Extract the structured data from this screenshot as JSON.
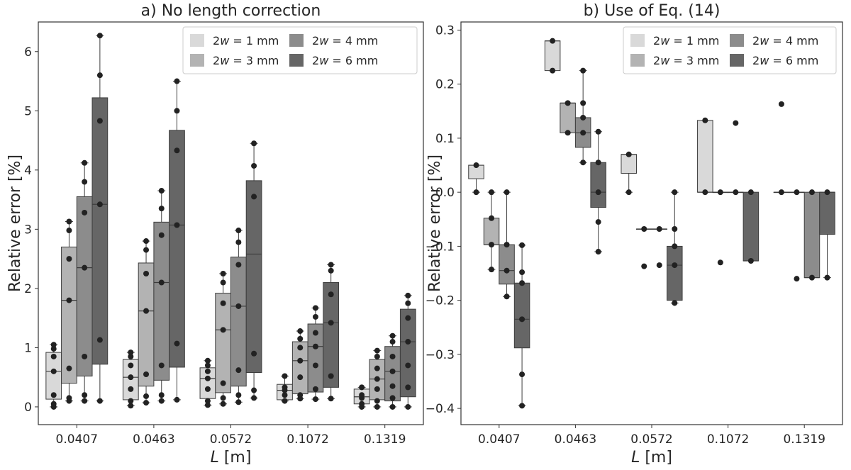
{
  "chart_data": [
    {
      "type": "box",
      "title": "a) No length correction",
      "xlabel_var": "L",
      "xlabel_unit": " [m]",
      "ylabel": "Relative error [%]",
      "ylim": [
        -0.3,
        6.5
      ],
      "yticks": [
        0,
        1,
        2,
        3,
        4,
        5,
        6
      ],
      "ytick_labels": [
        "0",
        "1",
        "2",
        "3",
        "4",
        "5",
        "6"
      ],
      "categories": [
        "0.0407",
        "0.0463",
        "0.0572",
        "0.1072",
        "0.1319"
      ],
      "legend": {
        "position": "top-right",
        "entries": [
          {
            "prefix": "2",
            "var": "w",
            "suffix": " = 1 mm"
          },
          {
            "prefix": "2",
            "var": "w",
            "suffix": " = 4 mm"
          },
          {
            "prefix": "2",
            "var": "w",
            "suffix": " = 3 mm"
          },
          {
            "prefix": "2",
            "var": "w",
            "suffix": " = 6 mm"
          }
        ]
      },
      "series": [
        {
          "name": "2w = 1 mm",
          "color": "#d9d9d9",
          "boxes": [
            {
              "q1": 0.13,
              "median": 0.6,
              "q3": 0.92,
              "whisker_low": 0.0,
              "whisker_high": 1.05,
              "points": [
                0.0,
                0.05,
                0.2,
                0.6,
                0.85,
                0.98,
                1.05
              ]
            },
            {
              "q1": 0.12,
              "median": 0.5,
              "q3": 0.8,
              "whisker_low": 0.02,
              "whisker_high": 0.92,
              "points": [
                0.02,
                0.1,
                0.3,
                0.5,
                0.7,
                0.85,
                0.92
              ]
            },
            {
              "q1": 0.14,
              "median": 0.48,
              "q3": 0.66,
              "whisker_low": 0.03,
              "whisker_high": 0.78,
              "points": [
                0.03,
                0.1,
                0.3,
                0.48,
                0.6,
                0.7,
                0.78
              ]
            },
            {
              "q1": 0.12,
              "median": 0.28,
              "q3": 0.38,
              "whisker_low": 0.1,
              "whisker_high": 0.52,
              "points": [
                0.1,
                0.2,
                0.28,
                0.33,
                0.52
              ]
            },
            {
              "q1": 0.05,
              "median": 0.17,
              "q3": 0.3,
              "whisker_low": 0.0,
              "whisker_high": 0.33,
              "points": [
                0.0,
                0.05,
                0.15,
                0.2,
                0.33
              ]
            }
          ]
        },
        {
          "name": "2w = 3 mm",
          "color": "#b3b3b3",
          "boxes": [
            {
              "q1": 0.4,
              "median": 1.8,
              "q3": 2.7,
              "whisker_low": 0.1,
              "whisker_high": 3.13,
              "points": [
                0.1,
                0.15,
                0.65,
                1.8,
                2.5,
                2.98,
                3.13
              ]
            },
            {
              "q1": 0.35,
              "median": 1.62,
              "q3": 2.43,
              "whisker_low": 0.07,
              "whisker_high": 2.8,
              "points": [
                0.07,
                0.18,
                0.55,
                1.62,
                2.25,
                2.65,
                2.8
              ]
            },
            {
              "q1": 0.24,
              "median": 1.3,
              "q3": 1.92,
              "whisker_low": 0.05,
              "whisker_high": 2.25,
              "points": [
                0.05,
                0.15,
                0.4,
                1.3,
                1.75,
                2.1,
                2.25
              ]
            },
            {
              "q1": 0.22,
              "median": 0.78,
              "q3": 1.1,
              "whisker_low": 0.14,
              "whisker_high": 1.28,
              "points": [
                0.14,
                0.2,
                0.5,
                0.78,
                1.0,
                1.15,
                1.28
              ]
            },
            {
              "q1": 0.12,
              "median": 0.47,
              "q3": 0.8,
              "whisker_low": 0.0,
              "whisker_high": 0.95,
              "points": [
                0.0,
                0.1,
                0.3,
                0.47,
                0.65,
                0.85,
                0.95
              ]
            }
          ]
        },
        {
          "name": "2w = 4 mm",
          "color": "#8c8c8c",
          "boxes": [
            {
              "q1": 0.52,
              "median": 2.35,
              "q3": 3.55,
              "whisker_low": 0.1,
              "whisker_high": 4.12,
              "points": [
                0.1,
                0.2,
                0.85,
                2.35,
                3.28,
                3.8,
                4.12
              ]
            },
            {
              "q1": 0.45,
              "median": 2.1,
              "q3": 3.12,
              "whisker_low": 0.1,
              "whisker_high": 3.65,
              "points": [
                0.1,
                0.2,
                0.7,
                2.1,
                2.9,
                3.35,
                3.65
              ]
            },
            {
              "q1": 0.35,
              "median": 1.7,
              "q3": 2.53,
              "whisker_low": 0.08,
              "whisker_high": 2.98,
              "points": [
                0.08,
                0.2,
                0.62,
                1.7,
                2.4,
                2.78,
                2.98
              ]
            },
            {
              "q1": 0.25,
              "median": 1.02,
              "q3": 1.4,
              "whisker_low": 0.13,
              "whisker_high": 1.67,
              "points": [
                0.13,
                0.3,
                0.7,
                1.02,
                1.25,
                1.52,
                1.67
              ]
            },
            {
              "q1": 0.1,
              "median": 0.6,
              "q3": 1.02,
              "whisker_low": 0.0,
              "whisker_high": 1.2,
              "points": [
                0.0,
                0.15,
                0.35,
                0.6,
                0.85,
                1.1,
                1.2
              ]
            }
          ]
        },
        {
          "name": "2w = 6 mm",
          "color": "#666666",
          "boxes": [
            {
              "q1": 0.72,
              "median": 3.42,
              "q3": 5.22,
              "whisker_low": 0.1,
              "whisker_high": 6.27,
              "points": [
                0.1,
                1.13,
                3.42,
                4.83,
                5.6,
                6.27
              ]
            },
            {
              "q1": 0.67,
              "median": 3.07,
              "q3": 4.67,
              "whisker_low": 0.12,
              "whisker_high": 5.5,
              "points": [
                0.12,
                1.07,
                3.07,
                4.33,
                5.0,
                5.5
              ]
            },
            {
              "q1": 0.58,
              "median": 2.58,
              "q3": 3.82,
              "whisker_low": 0.15,
              "whisker_high": 4.45,
              "points": [
                0.15,
                0.28,
                0.9,
                3.55,
                4.07,
                4.45
              ]
            },
            {
              "q1": 0.33,
              "median": 1.42,
              "q3": 2.1,
              "whisker_low": 0.14,
              "whisker_high": 2.4,
              "points": [
                0.14,
                0.52,
                1.42,
                1.9,
                2.3,
                2.4
              ]
            },
            {
              "q1": 0.17,
              "median": 1.1,
              "q3": 1.65,
              "whisker_low": 0.0,
              "whisker_high": 1.88,
              "points": [
                0.0,
                0.33,
                0.7,
                1.1,
                1.5,
                1.75,
                1.88
              ]
            }
          ]
        }
      ]
    },
    {
      "type": "box",
      "title": "b) Use of Eq. (14)",
      "xlabel_var": "L",
      "xlabel_unit": " [m]",
      "ylabel": "Relative error [%]",
      "ylim": [
        -0.43,
        0.315
      ],
      "yticks": [
        -0.4,
        -0.3,
        -0.2,
        -0.1,
        0.0,
        0.1,
        0.2,
        0.3
      ],
      "ytick_labels": [
        "−0.4",
        "−0.3",
        "−0.2",
        "−0.1",
        "0.0",
        "0.1",
        "0.2",
        "0.3"
      ],
      "categories": [
        "0.0407",
        "0.0463",
        "0.0572",
        "0.1072",
        "0.1319"
      ],
      "legend": {
        "position": "top-right",
        "entries": [
          {
            "prefix": "2",
            "var": "w",
            "suffix": " = 1 mm"
          },
          {
            "prefix": "2",
            "var": "w",
            "suffix": " = 4 mm"
          },
          {
            "prefix": "2",
            "var": "w",
            "suffix": " = 3 mm"
          },
          {
            "prefix": "2",
            "var": "w",
            "suffix": " = 6 mm"
          }
        ]
      },
      "series": [
        {
          "name": "2w = 1 mm",
          "color": "#d9d9d9",
          "boxes": [
            {
              "q1": 0.025,
              "median": 0.05,
              "q3": 0.05,
              "whisker_low": 0.0,
              "whisker_high": 0.05,
              "points": [
                0.0,
                0.05
              ]
            },
            {
              "q1": 0.225,
              "median": 0.28,
              "q3": 0.28,
              "whisker_low": 0.225,
              "whisker_high": 0.28,
              "points": [
                0.225,
                0.28
              ]
            },
            {
              "q1": 0.035,
              "median": 0.07,
              "q3": 0.07,
              "whisker_low": 0.0,
              "whisker_high": 0.07,
              "points": [
                0.0,
                0.07
              ]
            },
            {
              "q1": 0.0,
              "median": 0.0,
              "q3": 0.133,
              "whisker_low": 0.0,
              "whisker_high": 0.133,
              "points": [
                0.0,
                0.133
              ]
            },
            {
              "q1": 0.0,
              "median": 0.0,
              "q3": 0.0,
              "whisker_low": 0.0,
              "whisker_high": 0.0,
              "points": [
                0.0,
                0.163
              ]
            }
          ]
        },
        {
          "name": "2w = 3 mm",
          "color": "#b3b3b3",
          "boxes": [
            {
              "q1": -0.097,
              "median": -0.097,
              "q3": -0.048,
              "whisker_low": -0.143,
              "whisker_high": 0.0,
              "points": [
                -0.143,
                -0.097,
                -0.048,
                0.0
              ]
            },
            {
              "q1": 0.11,
              "median": 0.165,
              "q3": 0.165,
              "whisker_low": 0.11,
              "whisker_high": 0.165,
              "points": [
                0.11,
                0.165
              ]
            },
            {
              "q1": -0.068,
              "median": -0.068,
              "q3": -0.068,
              "whisker_low": -0.068,
              "whisker_high": -0.068,
              "points": [
                -0.137,
                -0.068
              ]
            },
            {
              "q1": 0.0,
              "median": 0.0,
              "q3": 0.0,
              "whisker_low": 0.0,
              "whisker_high": 0.0,
              "points": [
                -0.13,
                0.0
              ]
            },
            {
              "q1": 0.0,
              "median": 0.0,
              "q3": 0.0,
              "whisker_low": 0.0,
              "whisker_high": 0.0,
              "points": [
                -0.16,
                0.0
              ]
            }
          ]
        },
        {
          "name": "2w = 4 mm",
          "color": "#8c8c8c",
          "boxes": [
            {
              "q1": -0.17,
              "median": -0.145,
              "q3": -0.097,
              "whisker_low": -0.193,
              "whisker_high": 0.0,
              "points": [
                -0.193,
                -0.145,
                -0.097,
                0.0
              ]
            },
            {
              "q1": 0.083,
              "median": 0.11,
              "q3": 0.138,
              "whisker_low": 0.055,
              "whisker_high": 0.225,
              "points": [
                0.055,
                0.11,
                0.138,
                0.165,
                0.225
              ]
            },
            {
              "q1": -0.068,
              "median": -0.068,
              "q3": -0.068,
              "whisker_low": -0.068,
              "whisker_high": -0.068,
              "points": [
                -0.135,
                -0.068
              ]
            },
            {
              "q1": 0.0,
              "median": 0.0,
              "q3": 0.0,
              "whisker_low": 0.0,
              "whisker_high": 0.0,
              "points": [
                0.0,
                0.128
              ]
            },
            {
              "q1": -0.158,
              "median": -0.158,
              "q3": 0.0,
              "whisker_low": -0.158,
              "whisker_high": 0.0,
              "points": [
                -0.158,
                0.0
              ]
            }
          ]
        },
        {
          "name": "2w = 6 mm",
          "color": "#666666",
          "boxes": [
            {
              "q1": -0.288,
              "median": -0.235,
              "q3": -0.168,
              "whisker_low": -0.395,
              "whisker_high": -0.098,
              "points": [
                -0.395,
                -0.337,
                -0.235,
                -0.168,
                -0.148,
                -0.098
              ]
            },
            {
              "q1": -0.028,
              "median": 0.0,
              "q3": 0.055,
              "whisker_low": -0.11,
              "whisker_high": 0.112,
              "points": [
                -0.11,
                -0.055,
                0.0,
                0.055,
                0.112
              ]
            },
            {
              "q1": -0.2,
              "median": -0.135,
              "q3": -0.1,
              "whisker_low": -0.205,
              "whisker_high": 0.0,
              "points": [
                -0.205,
                -0.135,
                -0.1,
                -0.068,
                0.0
              ]
            },
            {
              "q1": -0.127,
              "median": -0.127,
              "q3": 0.0,
              "whisker_low": -0.127,
              "whisker_high": 0.0,
              "points": [
                -0.127,
                0.0
              ]
            },
            {
              "q1": -0.078,
              "median": 0.0,
              "q3": 0.0,
              "whisker_low": -0.158,
              "whisker_high": 0.0,
              "points": [
                -0.158,
                0.0
              ]
            }
          ]
        }
      ]
    }
  ]
}
